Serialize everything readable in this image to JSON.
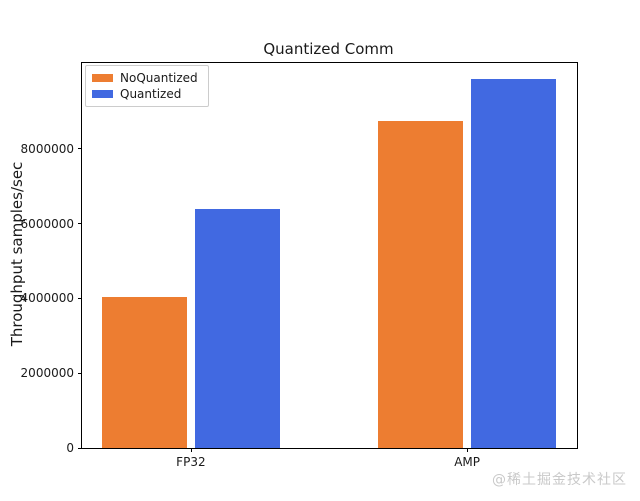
{
  "chart_data": {
    "type": "bar",
    "title": "Quantized Comm",
    "xlabel": "",
    "ylabel": "Throughput samples/sec",
    "categories": [
      "FP32",
      "AMP"
    ],
    "series": [
      {
        "name": "NoQuantized",
        "color": "#ED7D31",
        "values": [
          4050000,
          8750000
        ]
      },
      {
        "name": "Quantized",
        "color": "#4169E1",
        "values": [
          6400000,
          9860000
        ]
      }
    ],
    "ylim": [
      0,
      10300000
    ],
    "yticks": [
      0,
      2000000,
      4000000,
      6000000,
      8000000
    ],
    "ytick_labels": [
      "0",
      "2000000",
      "4000000",
      "6000000",
      "8000000"
    ],
    "grid": false,
    "legend_position": "upper left",
    "plot_background": "#ffffff"
  },
  "watermark": {
    "text": "@稀土掘金技术社区",
    "color": "#c9c9c9"
  }
}
